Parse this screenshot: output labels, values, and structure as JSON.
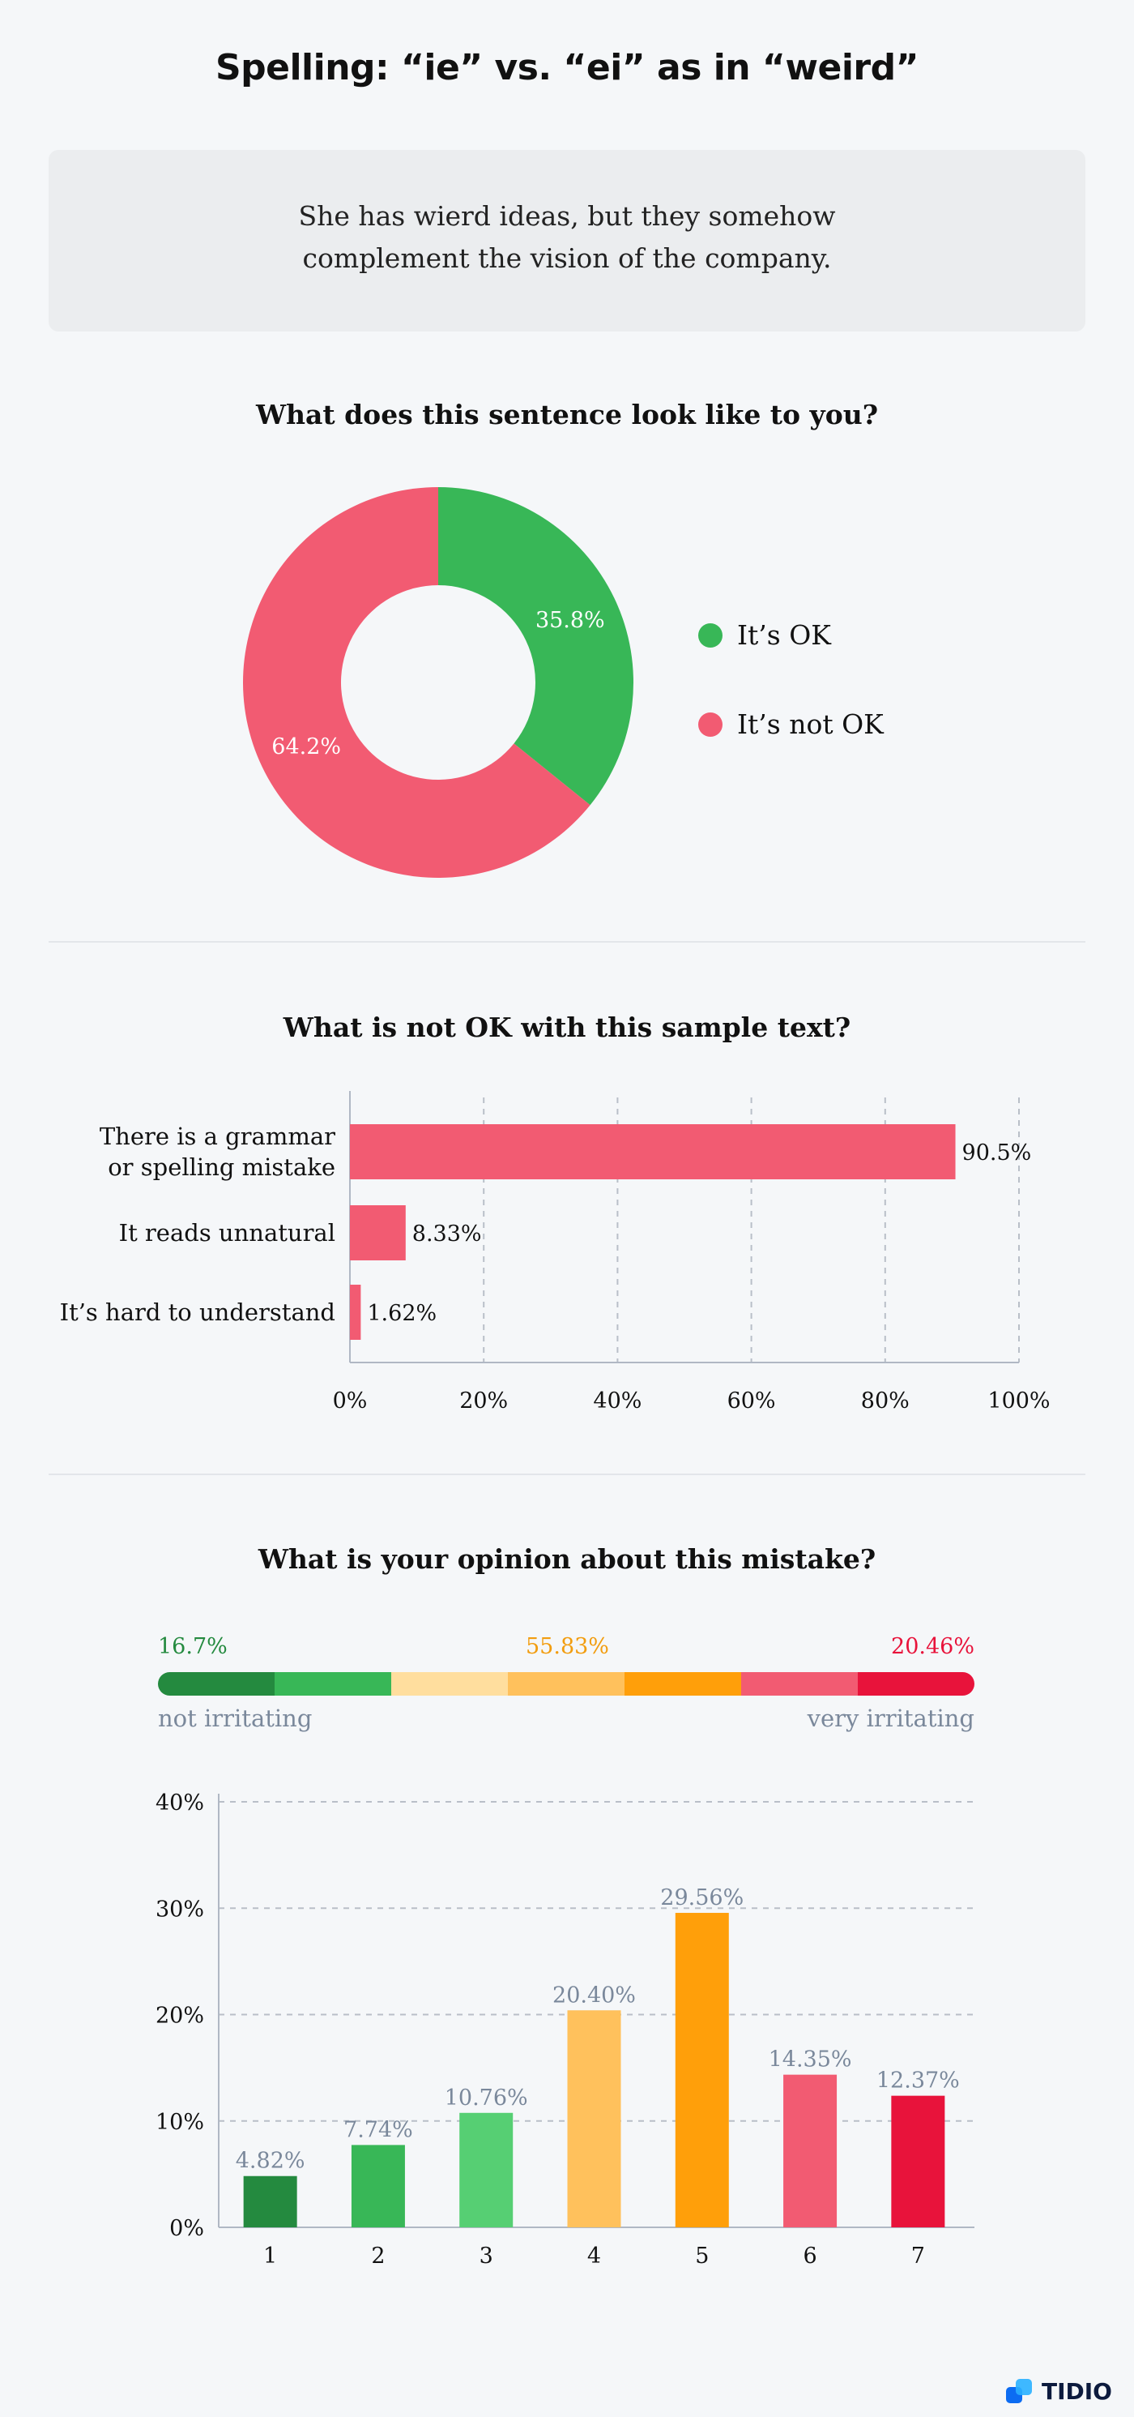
{
  "title": "Spelling: “ie” vs. “ei” as in “weird”",
  "sentence": [
    "She has wierd ideas, but they somehow",
    "complement the vision of the company."
  ],
  "colors": {
    "green": "#38b757",
    "red": "#f25b72",
    "dark_green": "#248a3f",
    "light_green": "#56cf73",
    "peach": "#ffde9e",
    "light_orange": "#ffc15c",
    "orange": "#ff9f0a",
    "crimson": "#e8133b"
  },
  "brand": "TIDIO",
  "chart_data": [
    {
      "type": "pie",
      "title": "What does this sentence look like to you?",
      "categories": [
        "It’s OK",
        "It’s not OK"
      ],
      "values": [
        35.8,
        64.2
      ],
      "labels": [
        "35.8%",
        "64.2%"
      ],
      "colors": [
        "#38b757",
        "#f25b72"
      ],
      "legend": "right"
    },
    {
      "type": "bar",
      "orientation": "horizontal",
      "title": "What is not OK with this sample text?",
      "categories": [
        [
          "There is a grammar",
          "or spelling mistake"
        ],
        [
          "It reads unnatural"
        ],
        [
          "It’s hard to understand"
        ]
      ],
      "values": [
        90.5,
        8.33,
        1.62
      ],
      "labels": [
        "90.5%",
        "8.33%",
        "1.62%"
      ],
      "xlim": [
        0,
        100
      ],
      "ticks": [
        "0%",
        "20%",
        "40%",
        "60%",
        "80%",
        "100%"
      ],
      "grid": true
    },
    {
      "type": "bar",
      "title": "What is your opinion about this mistake?",
      "scale": {
        "summary": [
          "16.7%",
          "55.83%",
          "20.46%"
        ],
        "left_label": "not irritating",
        "right_label": "very irritating",
        "colors": [
          "#248a3f",
          "#38b757",
          "#ffde9e",
          "#ffc15c",
          "#ff9f0a",
          "#f25b72",
          "#e8133b"
        ]
      },
      "categories": [
        "1",
        "2",
        "3",
        "4",
        "5",
        "6",
        "7"
      ],
      "values": [
        4.82,
        7.74,
        10.76,
        20.4,
        29.56,
        14.35,
        12.37
      ],
      "labels": [
        "4.82%",
        "7.74%",
        "10.76%",
        "20.40%",
        "29.56%",
        "14.35%",
        "12.37%"
      ],
      "colors": [
        "#248a3f",
        "#38b757",
        "#56cf73",
        "#ffc15c",
        "#ff9f0a",
        "#f25b72",
        "#e8133b"
      ],
      "ylim": [
        0,
        40
      ],
      "ticks": [
        "0%",
        "10%",
        "20%",
        "30%",
        "40%"
      ],
      "grid": true
    }
  ]
}
